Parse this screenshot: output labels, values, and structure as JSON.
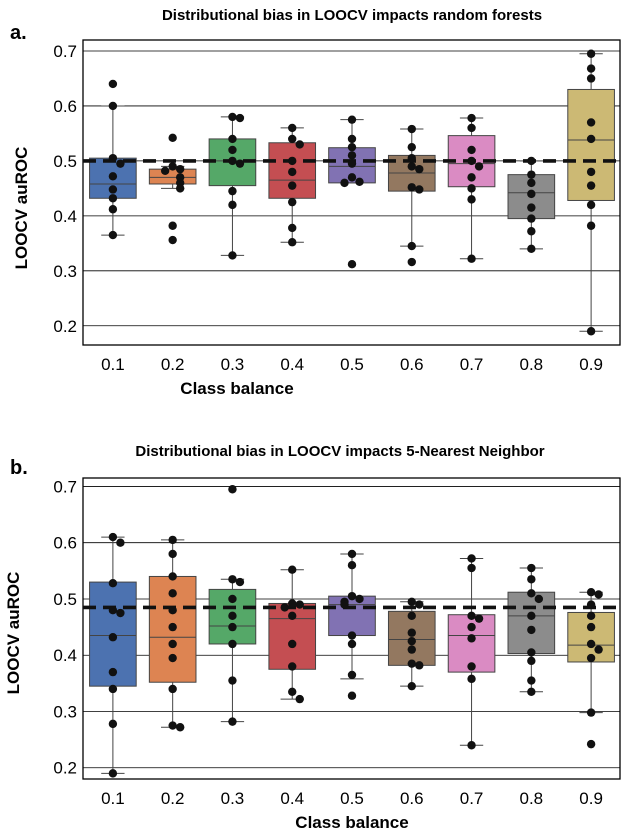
{
  "chart_data": [
    {
      "type": "box",
      "panel_label": "a.",
      "title": "Distributional bias in LOOCV impacts random forests",
      "xlabel": "Class balance",
      "ylabel": "LOOCV auROC",
      "categories": [
        "0.1",
        "0.2",
        "0.3",
        "0.4",
        "0.5",
        "0.6",
        "0.7",
        "0.8",
        "0.9"
      ],
      "ylim": [
        0.165,
        0.72
      ],
      "yticks": [
        0.2,
        0.3,
        0.4,
        0.5,
        0.6,
        0.7
      ],
      "ytick_labels": [
        "0.2",
        "0.3",
        "0.4",
        "0.5",
        "0.6",
        "0.7"
      ],
      "grid": "horizontal",
      "reference_line": 0.5,
      "colors": [
        "#4c72b0",
        "#dd8452",
        "#55a868",
        "#c44e52",
        "#8172b3",
        "#937860",
        "#da8bc3",
        "#8c8c8c",
        "#ccb974"
      ],
      "boxes": [
        {
          "min": 0.365,
          "q1": 0.432,
          "median": 0.458,
          "q3": 0.505,
          "max": 0.6
        },
        {
          "min": 0.45,
          "q1": 0.458,
          "median": 0.47,
          "q3": 0.485,
          "max": 0.49
        },
        {
          "min": 0.328,
          "q1": 0.455,
          "median": 0.5,
          "q3": 0.54,
          "max": 0.58
        },
        {
          "min": 0.352,
          "q1": 0.432,
          "median": 0.465,
          "q3": 0.533,
          "max": 0.56
        },
        {
          "min": 0.46,
          "q1": 0.46,
          "median": 0.49,
          "q3": 0.524,
          "max": 0.575
        },
        {
          "min": 0.345,
          "q1": 0.445,
          "median": 0.478,
          "q3": 0.51,
          "max": 0.558
        },
        {
          "min": 0.322,
          "q1": 0.453,
          "median": 0.495,
          "q3": 0.546,
          "max": 0.578
        },
        {
          "min": 0.34,
          "q1": 0.395,
          "median": 0.442,
          "q3": 0.475,
          "max": 0.5
        },
        {
          "min": 0.19,
          "q1": 0.428,
          "median": 0.538,
          "q3": 0.63,
          "max": 0.695
        }
      ],
      "points": [
        [
          0.64,
          0.6,
          0.505,
          0.495,
          0.472,
          0.448,
          0.432,
          0.412,
          0.365
        ],
        [
          0.542,
          0.49,
          0.485,
          0.482,
          0.47,
          0.46,
          0.45,
          0.382,
          0.356
        ],
        [
          0.58,
          0.578,
          0.54,
          0.52,
          0.5,
          0.495,
          0.445,
          0.42,
          0.328
        ],
        [
          0.56,
          0.54,
          0.53,
          0.5,
          0.48,
          0.455,
          0.425,
          0.378,
          0.352
        ],
        [
          0.575,
          0.54,
          0.525,
          0.51,
          0.495,
          0.47,
          0.462,
          0.46,
          0.312
        ],
        [
          0.558,
          0.525,
          0.505,
          0.49,
          0.485,
          0.452,
          0.448,
          0.345,
          0.316
        ],
        [
          0.578,
          0.56,
          0.52,
          0.5,
          0.49,
          0.47,
          0.45,
          0.43,
          0.322
        ],
        [
          0.5,
          0.475,
          0.46,
          0.44,
          0.415,
          0.395,
          0.372,
          0.34
        ],
        [
          0.695,
          0.668,
          0.65,
          0.57,
          0.54,
          0.48,
          0.455,
          0.42,
          0.382,
          0.19
        ]
      ]
    },
    {
      "type": "box",
      "panel_label": "b.",
      "title": "Distributional bias in LOOCV impacts 5-Nearest Neighbor",
      "xlabel": "Class balance",
      "ylabel": "LOOCV auROC",
      "categories": [
        "0.1",
        "0.2",
        "0.3",
        "0.4",
        "0.5",
        "0.6",
        "0.7",
        "0.8",
        "0.9"
      ],
      "ylim": [
        0.18,
        0.715
      ],
      "yticks": [
        0.2,
        0.3,
        0.4,
        0.5,
        0.6,
        0.7
      ],
      "ytick_labels": [
        "0.2",
        "0.3",
        "0.4",
        "0.5",
        "0.6",
        "0.7"
      ],
      "grid": "horizontal",
      "reference_line": 0.485,
      "colors": [
        "#4c72b0",
        "#dd8452",
        "#55a868",
        "#c44e52",
        "#8172b3",
        "#937860",
        "#da8bc3",
        "#8c8c8c",
        "#ccb974"
      ],
      "boxes": [
        {
          "min": 0.19,
          "q1": 0.345,
          "median": 0.435,
          "q3": 0.53,
          "max": 0.61
        },
        {
          "min": 0.272,
          "q1": 0.352,
          "median": 0.432,
          "q3": 0.54,
          "max": 0.605
        },
        {
          "min": 0.282,
          "q1": 0.42,
          "median": 0.452,
          "q3": 0.517,
          "max": 0.535
        },
        {
          "min": 0.322,
          "q1": 0.375,
          "median": 0.465,
          "q3": 0.492,
          "max": 0.552
        },
        {
          "min": 0.358,
          "q1": 0.435,
          "median": 0.49,
          "q3": 0.505,
          "max": 0.58
        },
        {
          "min": 0.345,
          "q1": 0.382,
          "median": 0.428,
          "q3": 0.478,
          "max": 0.495
        },
        {
          "min": 0.24,
          "q1": 0.37,
          "median": 0.435,
          "q3": 0.472,
          "max": 0.572
        },
        {
          "min": 0.335,
          "q1": 0.403,
          "median": 0.47,
          "q3": 0.512,
          "max": 0.555
        },
        {
          "min": 0.298,
          "q1": 0.388,
          "median": 0.418,
          "q3": 0.476,
          "max": 0.512
        }
      ],
      "points": [
        [
          0.61,
          0.6,
          0.528,
          0.48,
          0.475,
          0.432,
          0.37,
          0.34,
          0.278,
          0.19
        ],
        [
          0.605,
          0.58,
          0.54,
          0.51,
          0.48,
          0.45,
          0.42,
          0.395,
          0.34,
          0.275,
          0.272
        ],
        [
          0.695,
          0.535,
          0.53,
          0.5,
          0.47,
          0.45,
          0.42,
          0.355,
          0.282
        ],
        [
          0.552,
          0.492,
          0.49,
          0.485,
          0.47,
          0.42,
          0.38,
          0.335,
          0.322
        ],
        [
          0.58,
          0.56,
          0.505,
          0.5,
          0.495,
          0.49,
          0.435,
          0.42,
          0.365,
          0.328
        ],
        [
          0.495,
          0.49,
          0.47,
          0.44,
          0.425,
          0.41,
          0.385,
          0.382,
          0.345
        ],
        [
          0.572,
          0.555,
          0.47,
          0.465,
          0.45,
          0.43,
          0.38,
          0.358,
          0.24
        ],
        [
          0.555,
          0.535,
          0.51,
          0.5,
          0.47,
          0.445,
          0.405,
          0.39,
          0.355,
          0.335
        ],
        [
          0.512,
          0.508,
          0.49,
          0.47,
          0.45,
          0.42,
          0.41,
          0.395,
          0.298,
          0.242
        ]
      ]
    }
  ]
}
